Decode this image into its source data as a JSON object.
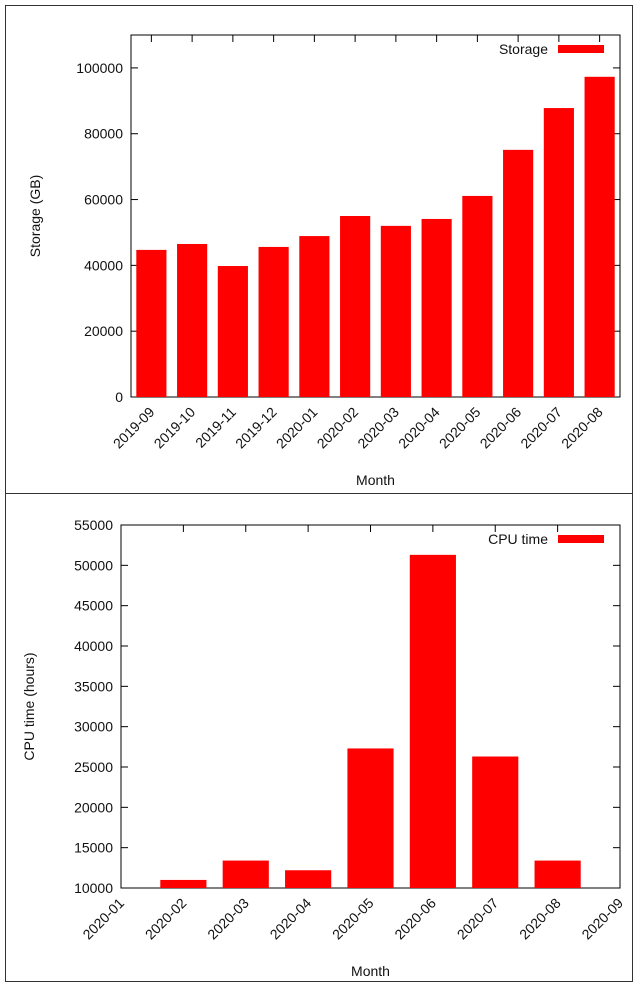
{
  "chart_data": [
    {
      "type": "bar",
      "xlabel": "Month",
      "ylabel": "Storage (GB)",
      "categories": [
        "2019-09",
        "2019-10",
        "2019-11",
        "2019-12",
        "2020-01",
        "2020-02",
        "2020-03",
        "2020-04",
        "2020-05",
        "2020-06",
        "2020-07",
        "2020-08"
      ],
      "series": [
        {
          "name": "Storage",
          "color": "#ff0000",
          "values": [
            44700,
            46500,
            39800,
            45600,
            48900,
            55000,
            52000,
            54100,
            61100,
            75100,
            87800,
            97300
          ]
        }
      ],
      "ylim": [
        0,
        110000
      ],
      "yticks": [
        0,
        20000,
        40000,
        60000,
        80000,
        100000
      ],
      "legend": "upper right"
    },
    {
      "type": "bar",
      "xlabel": "Month",
      "ylabel": "CPU time (hours)",
      "categories": [
        "2020-01",
        "2020-02",
        "2020-03",
        "2020-04",
        "2020-05",
        "2020-06",
        "2020-07",
        "2020-08",
        "2020-09"
      ],
      "series": [
        {
          "name": "CPU time",
          "color": "#ff0000",
          "values": [
            null,
            11000,
            13400,
            12200,
            27300,
            51300,
            26300,
            13400,
            null
          ]
        }
      ],
      "ylim": [
        10000,
        55000
      ],
      "yticks": [
        10000,
        15000,
        20000,
        25000,
        30000,
        35000,
        40000,
        45000,
        50000,
        55000
      ],
      "legend": "upper right"
    }
  ]
}
